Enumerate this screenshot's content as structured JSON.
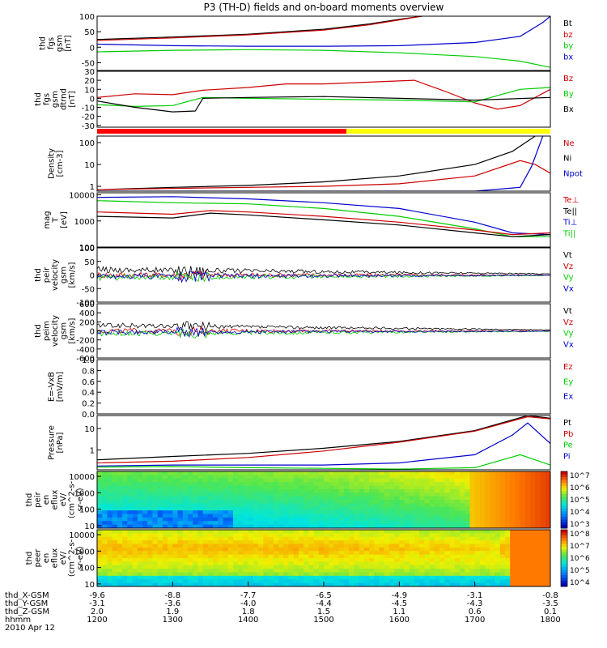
{
  "title": "P3 (TH-D) fields and on-board moments overview",
  "colors": {
    "black": "#000000",
    "red": "#cc0000",
    "green": "#00cc00",
    "blue": "#0000cc",
    "yellow": "#ffff00"
  },
  "chart_data": {
    "type": "line",
    "x_axis": {
      "rows": [
        {
          "label": "thd_X-GSM",
          "values": [
            "-9.6",
            "-8.8",
            "-7.7",
            "-6.5",
            "-4.9",
            "-3.1",
            "-0.8"
          ]
        },
        {
          "label": "thd_Y-GSM",
          "values": [
            "-3.1",
            "-3.6",
            "-4.0",
            "-4.4",
            "-4.5",
            "-4.3",
            "-3.5"
          ]
        },
        {
          "label": "thd_Z-GSM",
          "values": [
            "2.0",
            "1.9",
            "1.8",
            "1.5",
            "1.1",
            "0.6",
            "0.1"
          ]
        },
        {
          "label": "hhmm",
          "values": [
            "1200",
            "1300",
            "1400",
            "1500",
            "1600",
            "1700",
            "1800"
          ]
        }
      ],
      "date": "2010 Apr 12"
    },
    "panels": [
      {
        "id": "fgs_gsm",
        "ylabel": [
          "thd",
          "fgs",
          "gsm",
          "[nT]"
        ],
        "ylim": [
          -75,
          100
        ],
        "yticks": [
          "100",
          "50",
          "0",
          "-50"
        ],
        "legend": [
          {
            "name": "Bt",
            "color": "black"
          },
          {
            "name": "bz",
            "color": "red"
          },
          {
            "name": "by",
            "color": "green"
          },
          {
            "name": "bx",
            "color": "blue"
          }
        ],
        "series": [
          {
            "name": "Bt",
            "color": "black",
            "x": [
              1200,
              1300,
              1400,
              1500,
              1560,
              1600,
              1630
            ],
            "y": [
              25,
              33,
              42,
              58,
              75,
              90,
              100
            ]
          },
          {
            "name": "bz",
            "color": "red",
            "x": [
              1200,
              1300,
              1400,
              1500,
              1560,
              1600,
              1630
            ],
            "y": [
              22,
              30,
              40,
              55,
              72,
              88,
              100
            ]
          },
          {
            "name": "by",
            "color": "green",
            "x": [
              1200,
              1300,
              1400,
              1500,
              1600,
              1700,
              1760,
              1800
            ],
            "y": [
              -15,
              -10,
              -8,
              -10,
              -18,
              -30,
              -45,
              -65
            ]
          },
          {
            "name": "bx",
            "color": "blue",
            "x": [
              1200,
              1300,
              1400,
              1500,
              1600,
              1700,
              1760,
              1790,
              1800
            ],
            "y": [
              10,
              5,
              3,
              3,
              5,
              15,
              35,
              80,
              100
            ]
          }
        ]
      },
      {
        "id": "fgs_gsm_dtrnd",
        "ylabel": [
          "thd",
          "fgs",
          "gsm",
          "dtrnd",
          "[nT]"
        ],
        "ylim": [
          -32,
          30
        ],
        "yticks": [
          "30",
          "20",
          "10",
          "0",
          "-10",
          "-20",
          "-30"
        ],
        "legend": [
          {
            "name": "Bz",
            "color": "red"
          },
          {
            "name": "By",
            "color": "green"
          },
          {
            "name": "Bx",
            "color": "black"
          }
        ],
        "series": [
          {
            "name": "Bz",
            "color": "red",
            "x": [
              1200,
              1250,
              1300,
              1340,
              1400,
              1450,
              1500,
              1560,
              1620,
              1660,
              1700,
              1730,
              1760,
              1800
            ],
            "y": [
              1,
              5,
              4,
              9,
              12,
              16,
              16,
              18,
              20,
              8,
              -5,
              -12,
              -8,
              10
            ]
          },
          {
            "name": "By",
            "color": "green",
            "x": [
              1200,
              1250,
              1300,
              1340,
              1400,
              1500,
              1600,
              1650,
              1700,
              1760,
              1800
            ],
            "y": [
              -7,
              -9,
              -8,
              1,
              0,
              -1,
              -2,
              -3,
              -4,
              10,
              12
            ]
          },
          {
            "name": "Bx",
            "color": "black",
            "x": [
              1200,
              1250,
              1300,
              1330,
              1340,
              1400,
              1500,
              1600,
              1700,
              1800
            ],
            "y": [
              -3,
              -10,
              -15,
              -14,
              0,
              1,
              2,
              0,
              -2,
              1
            ]
          }
        ]
      },
      {
        "id": "density",
        "ylabel": [
          "Density",
          "[cm-3]"
        ],
        "scale": "log",
        "ylim": [
          0.6,
          200
        ],
        "yticks": [
          "100",
          "10",
          "1"
        ],
        "legend": [
          {
            "name": "Ne",
            "color": "red"
          },
          {
            "name": "Ni",
            "color": "black"
          },
          {
            "name": "Npot",
            "color": "blue"
          }
        ],
        "series": [
          {
            "name": "Ni",
            "color": "black",
            "x": [
              1200,
              1300,
              1400,
              1500,
              1600,
              1700,
              1750,
              1780
            ],
            "y": [
              0.7,
              0.9,
              1.1,
              1.6,
              3,
              10,
              40,
              200
            ]
          },
          {
            "name": "Ne",
            "color": "red",
            "x": [
              1200,
              1300,
              1400,
              1500,
              1600,
              1700,
              1760,
              1780,
              1800
            ],
            "y": [
              0.7,
              0.8,
              0.9,
              1.0,
              1.3,
              3,
              15,
              10,
              4
            ]
          },
          {
            "name": "Npot",
            "color": "blue",
            "x": [
              1200,
              1300,
              1400,
              1500,
              1600,
              1700,
              1760,
              1775,
              1790
            ],
            "y": [
              0.6,
              0.6,
              0.6,
              0.6,
              0.6,
              0.6,
              0.9,
              8,
              200
            ]
          }
        ]
      },
      {
        "id": "temperature",
        "ylabel": [
          "mag",
          "T",
          "[eV]"
        ],
        "scale": "log",
        "ylim": [
          100,
          12000
        ],
        "yticks": [
          "10000",
          "1000",
          "100"
        ],
        "legend": [
          {
            "name": "Te⊥",
            "color": "red"
          },
          {
            "name": "Te||",
            "color": "black"
          },
          {
            "name": "Ti⊥",
            "color": "blue"
          },
          {
            "name": "Ti||",
            "color": "green"
          }
        ],
        "series": [
          {
            "name": "Ti⊥",
            "color": "blue",
            "x": [
              1200,
              1300,
              1400,
              1500,
              1600,
              1700,
              1750,
              1800
            ],
            "y": [
              8000,
              8500,
              7000,
              5000,
              3000,
              900,
              350,
              300
            ]
          },
          {
            "name": "Ti||",
            "color": "green",
            "x": [
              1200,
              1300,
              1400,
              1500,
              1600,
              1700,
              1750,
              1800
            ],
            "y": [
              6000,
              5000,
              4500,
              3000,
              1500,
              500,
              250,
              250
            ]
          },
          {
            "name": "Te⊥",
            "color": "red",
            "x": [
              1200,
              1300,
              1350,
              1400,
              1500,
              1600,
              1700,
              1750,
              1800
            ],
            "y": [
              2200,
              1800,
              2500,
              2200,
              1500,
              900,
              450,
              300,
              350
            ]
          },
          {
            "name": "Te||",
            "color": "black",
            "x": [
              1200,
              1300,
              1350,
              1400,
              1500,
              1600,
              1700,
              1750,
              1800
            ],
            "y": [
              1500,
              1300,
              2000,
              1700,
              1100,
              700,
              350,
              250,
              300
            ]
          }
        ]
      },
      {
        "id": "peir_velocity",
        "ylabel": [
          "thd",
          "peir",
          "velocity",
          "gsm",
          "[km/s]"
        ],
        "ylim": [
          -100,
          100
        ],
        "yticks": [
          "100",
          "50",
          "0",
          "-50",
          "-100"
        ],
        "legend": [
          {
            "name": "Vt",
            "color": "black"
          },
          {
            "name": "Vz",
            "color": "red"
          },
          {
            "name": "Vy",
            "color": "green"
          },
          {
            "name": "Vx",
            "color": "blue"
          }
        ]
      },
      {
        "id": "peim_velocity",
        "ylabel": [
          "thd",
          "peim",
          "velocity",
          "gsm",
          "[km/s]"
        ],
        "ylim": [
          -600,
          600
        ],
        "yticks": [
          "600",
          "400",
          "200",
          "0",
          "-200",
          "-400",
          "-600"
        ],
        "legend": [
          {
            "name": "Vt",
            "color": "black"
          },
          {
            "name": "Vz",
            "color": "red"
          },
          {
            "name": "Vy",
            "color": "green"
          },
          {
            "name": "Vx",
            "color": "blue"
          }
        ]
      },
      {
        "id": "e_vxb",
        "ylabel": [
          "E=-VxB",
          "[mV/m]"
        ],
        "ylim": [
          0,
          1
        ],
        "yticks": [
          "1.0",
          "0.8",
          "0.6",
          "0.4",
          "0.2",
          "0.0"
        ],
        "legend": [
          {
            "name": "Ez",
            "color": "red"
          },
          {
            "name": "Ey",
            "color": "green"
          },
          {
            "name": "Ex",
            "color": "blue"
          }
        ]
      },
      {
        "id": "pressure",
        "ylabel": [
          "Pressure",
          "[nPa]"
        ],
        "scale": "log",
        "ylim": [
          0.12,
          40
        ],
        "yticks": [
          "10",
          "1"
        ],
        "legend": [
          {
            "name": "Pt",
            "color": "black"
          },
          {
            "name": "Pb",
            "color": "red"
          },
          {
            "name": "Pe",
            "color": "green"
          },
          {
            "name": "Pi",
            "color": "blue"
          }
        ],
        "series": [
          {
            "name": "Pt",
            "color": "black",
            "x": [
              1200,
              1300,
              1400,
              1500,
              1600,
              1700,
              1770,
              1800
            ],
            "y": [
              0.35,
              0.5,
              0.7,
              1.2,
              2.5,
              8,
              40,
              30
            ]
          },
          {
            "name": "Pb",
            "color": "red",
            "x": [
              1200,
              1300,
              1400,
              1500,
              1600,
              1700,
              1770,
              1800
            ],
            "y": [
              0.25,
              0.3,
              0.45,
              0.9,
              2.3,
              7.5,
              35,
              28
            ]
          },
          {
            "name": "Pi",
            "color": "blue",
            "x": [
              1200,
              1300,
              1400,
              1500,
              1600,
              1700,
              1750,
              1770,
              1800
            ],
            "y": [
              0.18,
              0.2,
              0.2,
              0.2,
              0.25,
              0.6,
              5,
              18,
              2
            ]
          },
          {
            "name": "Pe",
            "color": "green",
            "x": [
              1200,
              1300,
              1400,
              1500,
              1600,
              1700,
              1760,
              1800
            ],
            "y": [
              0.16,
              0.17,
              0.15,
              0.14,
              0.13,
              0.15,
              0.6,
              0.2
            ]
          }
        ]
      },
      {
        "id": "peir_en_eflux",
        "type": "heatmap",
        "ylabel": [
          "thd",
          "peir",
          "en",
          "eflux",
          "eV/",
          "(cm^2-s-",
          "sr-eV)"
        ],
        "scale": "log",
        "ylim": [
          7,
          20000
        ],
        "yticks": [
          "10000",
          "1000",
          "100",
          "10"
        ],
        "colorbar": [
          "10^7",
          "10^6",
          "10^5",
          "10^4",
          "10^3"
        ]
      },
      {
        "id": "peer_en_eflux",
        "type": "heatmap",
        "ylabel": [
          "thd",
          "peer",
          "en",
          "eflux",
          "eV/",
          "(cm^2-s-",
          "sr-eV)"
        ],
        "scale": "log",
        "ylim": [
          7,
          20000
        ],
        "yticks": [
          "10000",
          "1000",
          "100",
          "10"
        ],
        "colorbar": [
          "10^8",
          "10^7",
          "10^6",
          "10^5",
          "10^4"
        ]
      }
    ]
  }
}
